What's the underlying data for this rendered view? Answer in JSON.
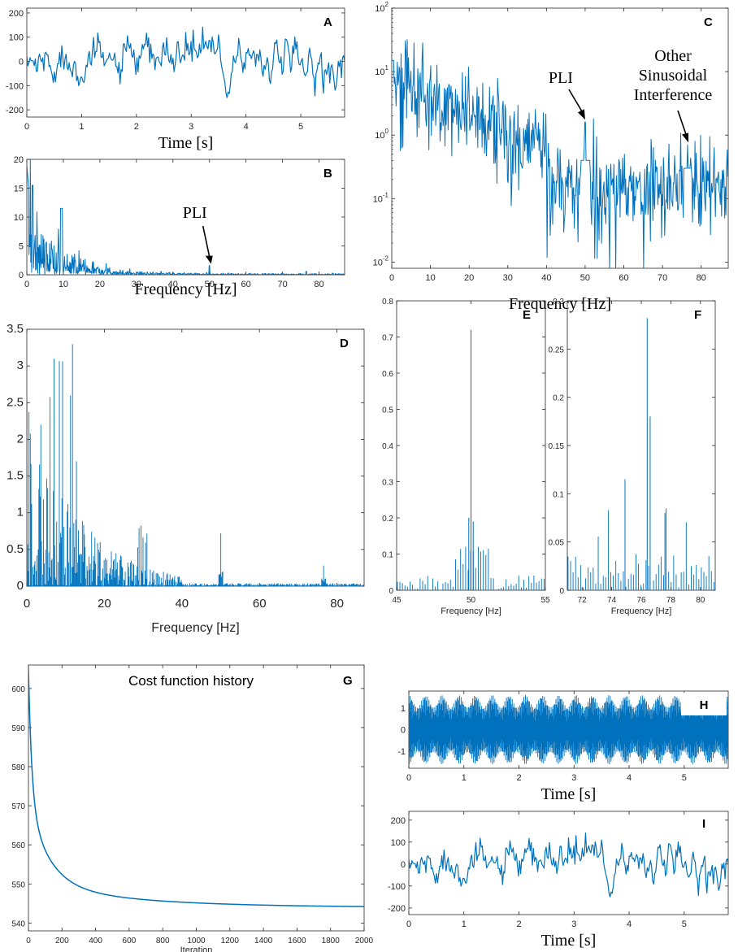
{
  "colors": {
    "series": "#0072BD",
    "axis": "#262626"
  },
  "chart_data": [
    {
      "id": "A",
      "type": "line",
      "letter": "A",
      "xlabel": "Time [s]",
      "xlim": [
        0,
        5.8
      ],
      "ylim": [
        -230,
        220
      ],
      "xticks": [
        "0",
        "1",
        "2",
        "3",
        "4",
        "5"
      ],
      "yticks": [
        "-200",
        "-100",
        "0",
        "100",
        "200"
      ],
      "series": [
        {
          "name": "EEG signal",
          "samples": 300,
          "noise_amplitude": 40,
          "dip_at_s": 3.65,
          "dip_value": -190
        }
      ]
    },
    {
      "id": "B",
      "type": "line",
      "letter": "B",
      "xlabel": "Frequency [Hz]",
      "xlim": [
        0,
        87
      ],
      "ylim": [
        0,
        20
      ],
      "xticks": [
        "0",
        "10",
        "20",
        "30",
        "40",
        "50",
        "60",
        "70",
        "80"
      ],
      "yticks": [
        "0",
        "5",
        "10",
        "15",
        "20"
      ],
      "peaks": [
        {
          "x": 50,
          "y": 1.6
        }
      ],
      "annotation": {
        "text": "PLI",
        "x": 50
      }
    },
    {
      "id": "C",
      "type": "line",
      "letter": "C",
      "yscale": "log",
      "xlabel": "Frequency [Hz]",
      "xlim": [
        0,
        87
      ],
      "ylim": [
        0.008,
        100
      ],
      "xticks": [
        "0",
        "10",
        "20",
        "30",
        "40",
        "50",
        "60",
        "70",
        "80"
      ],
      "yticks": [
        {
          "base": "10",
          "exp": "2"
        },
        {
          "base": "10",
          "exp": "1"
        },
        {
          "base": "10",
          "exp": "0"
        },
        {
          "base": "10",
          "exp": "-1"
        },
        {
          "base": "10",
          "exp": "-2"
        }
      ],
      "peaks": [
        {
          "x": 50,
          "y": 1.6
        },
        {
          "x": 76.5,
          "y": 0.7
        }
      ],
      "annotations": [
        {
          "text": "PLI",
          "x": 50
        },
        {
          "lines": [
            "Other",
            "Sinusoidal",
            "Interference"
          ],
          "x": 76.5
        }
      ]
    },
    {
      "id": "D",
      "type": "bar",
      "letter": "D",
      "xlabel": "Frequency [Hz]",
      "xlim": [
        0,
        87
      ],
      "ylim": [
        0,
        3.5
      ],
      "xticks": [
        "0",
        "20",
        "40",
        "60",
        "80"
      ],
      "yticks": [
        "0",
        "0.5",
        "1",
        "1.5",
        "2",
        "2.5",
        "3",
        "3.5"
      ],
      "peaks": [
        {
          "x": 50,
          "y": 0.72
        },
        {
          "x": 76.5,
          "y": 0.28
        }
      ]
    },
    {
      "id": "E",
      "type": "bar",
      "letter": "E",
      "xlabel": "Frequency [Hz]",
      "xlim": [
        45,
        55
      ],
      "ylim": [
        0,
        0.8
      ],
      "xticks": [
        "45",
        "50",
        "55"
      ],
      "yticks": [
        "0",
        "0.1",
        "0.2",
        "0.3",
        "0.4",
        "0.5",
        "0.6",
        "0.7",
        "0.8"
      ],
      "peaks": [
        {
          "x": 50,
          "y": 0.72
        },
        {
          "x": 49.85,
          "y": 0.2
        },
        {
          "x": 50.15,
          "y": 0.19
        }
      ]
    },
    {
      "id": "F",
      "type": "bar",
      "letter": "F",
      "xlabel": "Frequency [Hz]",
      "xlim": [
        71,
        81
      ],
      "ylim": [
        0,
        0.3
      ],
      "xticks": [
        "72",
        "74",
        "76",
        "78",
        "80"
      ],
      "yticks": [
        "0",
        "0.05",
        "0.1",
        "0.15",
        "0.2",
        "0.25",
        "0.3"
      ],
      "peaks": [
        {
          "x": 76.4,
          "y": 0.282
        },
        {
          "x": 76.6,
          "y": 0.18
        },
        {
          "x": 74.9,
          "y": 0.115
        },
        {
          "x": 77.6,
          "y": 0.08
        }
      ]
    },
    {
      "id": "G",
      "type": "line",
      "letter": "G",
      "title": "Cost function history",
      "xlabel": "Iteration",
      "xlim": [
        0,
        2000
      ],
      "ylim": [
        538,
        606
      ],
      "xticks": [
        "0",
        "200",
        "400",
        "600",
        "800",
        "1000",
        "1200",
        "1400",
        "1600",
        "1800",
        "2000"
      ],
      "yticks": [
        "540",
        "550",
        "560",
        "570",
        "580",
        "590",
        "600"
      ],
      "series": [
        {
          "name": "cost",
          "start": 605,
          "end": 544,
          "decay_iterations": 120
        }
      ]
    },
    {
      "id": "H",
      "type": "line",
      "letter": "H",
      "xlabel": "Time [s]",
      "xlim": [
        0,
        5.8
      ],
      "ylim": [
        -1.8,
        1.8
      ],
      "xticks": [
        "0",
        "1",
        "2",
        "3",
        "4",
        "5"
      ],
      "yticks": [
        "-1",
        "0",
        "1"
      ],
      "series": [
        {
          "name": "sinusoidal interference",
          "amplitude": 1.6
        }
      ]
    },
    {
      "id": "I",
      "type": "line",
      "letter": "I",
      "xlabel": "Time [s]",
      "xlim": [
        0,
        5.8
      ],
      "ylim": [
        -230,
        240
      ],
      "xticks": [
        "0",
        "1",
        "2",
        "3",
        "4",
        "5"
      ],
      "yticks": [
        "-200",
        "-100",
        "0",
        "100",
        "200"
      ],
      "series": [
        {
          "name": "cleaned EEG",
          "samples": 300,
          "noise_amplitude": 40,
          "dip_at_s": 3.65,
          "dip_value": -190
        }
      ]
    }
  ]
}
